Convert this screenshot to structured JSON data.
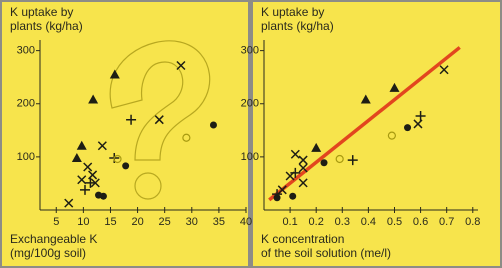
{
  "chart_data": [
    {
      "type": "scatter",
      "ylabel": [
        "K uptake by",
        "plants (kg/ha)"
      ],
      "xlabel": [
        "Exchangeable K",
        "(mg/100g soil)"
      ],
      "xlim": [
        2,
        40
      ],
      "ylim": [
        0,
        320
      ],
      "xticks": [
        5,
        10,
        15,
        20,
        25,
        30,
        35,
        40
      ],
      "yticks": [
        100,
        200,
        300
      ],
      "series": [
        {
          "marker": "triangle",
          "color": "#1e1e14",
          "x": [
            11.8,
            15.8,
            8.8,
            9.7
          ],
          "y": [
            208,
            255,
            98,
            121
          ]
        },
        {
          "marker": "cross",
          "color": "#1e1e14",
          "x": [
            28,
            24,
            13.5,
            10.8,
            9.7,
            11.7,
            7.3,
            12.2
          ],
          "y": [
            272,
            170,
            121,
            81,
            57,
            66,
            13,
            51
          ]
        },
        {
          "marker": "plus",
          "color": "#1e1e14",
          "x": [
            18.8,
            15.7,
            11.3,
            10.3
          ],
          "y": [
            170,
            98,
            51,
            38
          ]
        },
        {
          "marker": "dot",
          "color": "#1e1e14",
          "x": [
            34,
            17.8,
            12.8,
            13.7
          ],
          "y": [
            160,
            83,
            28,
            26
          ]
        },
        {
          "marker": "ring",
          "color": "#a89a10",
          "x": [
            29,
            16.3
          ],
          "y": [
            136,
            96
          ]
        }
      ]
    },
    {
      "type": "scatter",
      "ylabel": [
        "K uptake by",
        "plants (kg/ha)"
      ],
      "xlabel": [
        "K concentration",
        "of the soil solution (me/l)"
      ],
      "xlim": [
        0,
        0.82
      ],
      "ylim": [
        0,
        320
      ],
      "xticks": [
        0.1,
        0.2,
        0.3,
        0.4,
        0.5,
        0.6,
        0.7,
        0.8
      ],
      "yticks": [
        100,
        200,
        300
      ],
      "series": [
        {
          "marker": "line",
          "color": "#e2461e",
          "x": [
            0.02,
            0.75
          ],
          "y": [
            19,
            306
          ]
        },
        {
          "marker": "triangle",
          "color": "#1e1e14",
          "x": [
            0.39,
            0.5,
            0.2
          ],
          "y": [
            208,
            230,
            117
          ]
        },
        {
          "marker": "cross",
          "color": "#1e1e14",
          "x": [
            0.69,
            0.15,
            0.1,
            0.07,
            0.15,
            0.15,
            0.59,
            0.12
          ],
          "y": [
            264,
            79,
            64,
            38,
            51,
            94,
            162,
            105
          ]
        },
        {
          "marker": "plus",
          "color": "#1e1e14",
          "x": [
            0.6,
            0.34,
            0.05,
            0.12
          ],
          "y": [
            177,
            94,
            30,
            70
          ]
        },
        {
          "marker": "dot",
          "color": "#1e1e14",
          "x": [
            0.05,
            0.11,
            0.23,
            0.55
          ],
          "y": [
            23,
            26,
            89,
            155
          ]
        },
        {
          "marker": "ring",
          "color": "#a89a10",
          "x": [
            0.29,
            0.49
          ],
          "y": [
            96,
            140
          ]
        }
      ]
    }
  ]
}
